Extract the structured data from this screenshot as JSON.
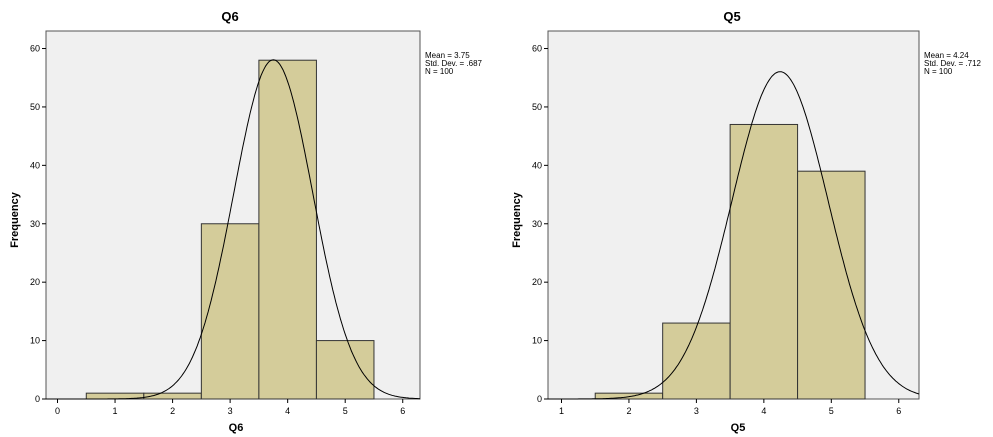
{
  "chart_data": [
    {
      "type": "bar",
      "title": "Q6",
      "xlabel": "Q6",
      "ylabel": "Frequency",
      "xlim": [
        -0.2,
        6.3
      ],
      "ylim": [
        0,
        63
      ],
      "x_ticks": [
        "0",
        "1",
        "2",
        "3",
        "4",
        "5",
        "6"
      ],
      "y_ticks": [
        "0",
        "10",
        "20",
        "30",
        "40",
        "50",
        "60"
      ],
      "categories": [
        "1",
        "2",
        "3",
        "4",
        "5"
      ],
      "values": [
        1,
        1,
        30,
        58,
        10
      ],
      "normal_curve": {
        "mean": 3.75,
        "std": 0.687,
        "n": 100
      },
      "stats_lines": [
        "Mean = 3.75",
        "Std. Dev. = .687",
        "N = 100"
      ],
      "grid": false,
      "bar_color": "#d4cc9a",
      "plot_bg": "#f0f0f0"
    },
    {
      "type": "bar",
      "title": "Q5",
      "xlabel": "Q5",
      "ylabel": "Frequency",
      "xlim": [
        0.8,
        6.3
      ],
      "ylim": [
        0,
        63
      ],
      "x_ticks": [
        "1",
        "2",
        "3",
        "4",
        "5",
        "6"
      ],
      "y_ticks": [
        "0",
        "10",
        "20",
        "30",
        "40",
        "50",
        "60"
      ],
      "categories": [
        "2",
        "3",
        "4",
        "5"
      ],
      "values": [
        1,
        13,
        47,
        39
      ],
      "normal_curve": {
        "mean": 4.24,
        "std": 0.712,
        "n": 100
      },
      "stats_lines": [
        "Mean = 4.24",
        "Std. Dev. = .712",
        "N = 100"
      ],
      "grid": false,
      "bar_color": "#d4cc9a",
      "plot_bg": "#f0f0f0"
    }
  ]
}
